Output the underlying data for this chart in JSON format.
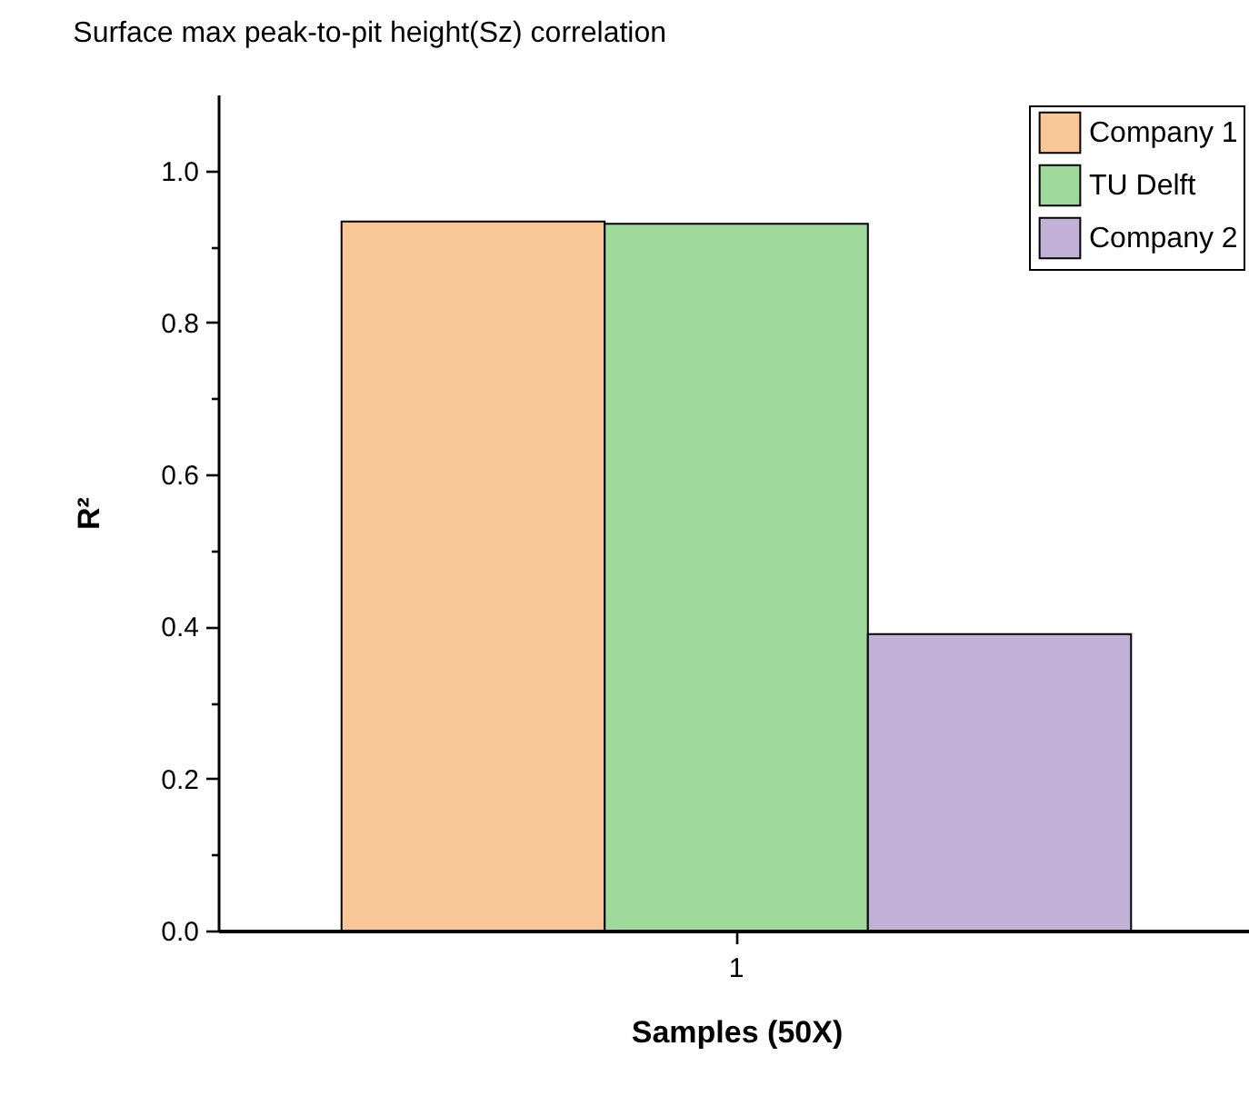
{
  "chart_data": {
    "type": "bar",
    "title": "Surface max peak-to-pit height(Sz) correlation",
    "xlabel": "Samples (50X)",
    "ylabel": "R²",
    "categories": [
      "1"
    ],
    "series": [
      {
        "name": "Company 1",
        "color": "#f9c797",
        "values": [
          0.933
        ]
      },
      {
        "name": "TU Delft",
        "color": "#9fd99c",
        "values": [
          0.93
        ]
      },
      {
        "name": "Company 2",
        "color": "#c2b1d6",
        "values": [
          0.39
        ]
      }
    ],
    "ylim": [
      0,
      1.1
    ],
    "yticks": [
      {
        "value": 0,
        "label": "0.0"
      },
      {
        "value": 0.1,
        "label": null
      },
      {
        "value": 0.2,
        "label": "0.2"
      },
      {
        "value": 0.3,
        "label": null
      },
      {
        "value": 0.4,
        "label": "0.4"
      },
      {
        "value": 0.5,
        "label": null
      },
      {
        "value": 0.6,
        "label": "0.6"
      },
      {
        "value": 0.7,
        "label": null
      },
      {
        "value": 0.8,
        "label": "0.8"
      },
      {
        "value": 0.9,
        "label": null
      },
      {
        "value": 1,
        "label": "1.0"
      }
    ],
    "grid": false,
    "legend": "top right"
  }
}
